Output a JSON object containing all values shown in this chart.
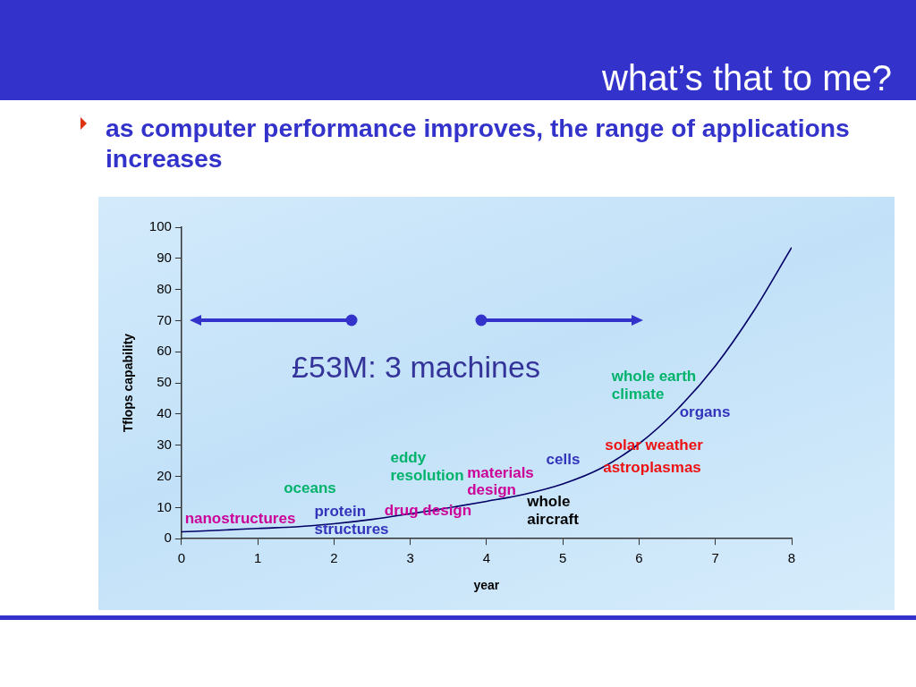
{
  "chart_data": {
    "type": "line",
    "title": "what’s that to me?",
    "subtitle": "as computer performance improves, the range of applications increases",
    "xlabel": "year",
    "ylabel": "Tflops capability",
    "x": [
      0,
      0.5,
      1,
      1.5,
      2,
      2.5,
      3,
      3.5,
      4,
      4.5,
      5,
      5.5,
      6,
      6.5,
      7,
      7.5,
      8
    ],
    "series": [
      {
        "color": "#000066",
        "values": [
          2.2,
          2.7,
          3.3,
          3.8,
          4.8,
          6.2,
          8.0,
          9.9,
          12.0,
          14.3,
          17.6,
          22.6,
          30.5,
          41.5,
          55.5,
          73,
          93.5
        ]
      }
    ],
    "xlim": [
      0,
      8
    ],
    "xticks": [
      0,
      1,
      2,
      3,
      4,
      5,
      6,
      7,
      8
    ],
    "ylim": [
      0,
      100
    ],
    "yticks": [
      0,
      10,
      20,
      30,
      40,
      50,
      60,
      70,
      80,
      90,
      100
    ],
    "legend": false,
    "marker": "none",
    "annotations": [
      "nanostructures",
      "oceans",
      "protein\nstructures",
      "eddy\nresolution",
      "drug design",
      "materials\ndesign",
      "cells",
      "whole\naircraft",
      "solar weather",
      "astroplasmas",
      "whole earth\nclimate",
      "organs",
      "£53M: 3 machines"
    ]
  }
}
